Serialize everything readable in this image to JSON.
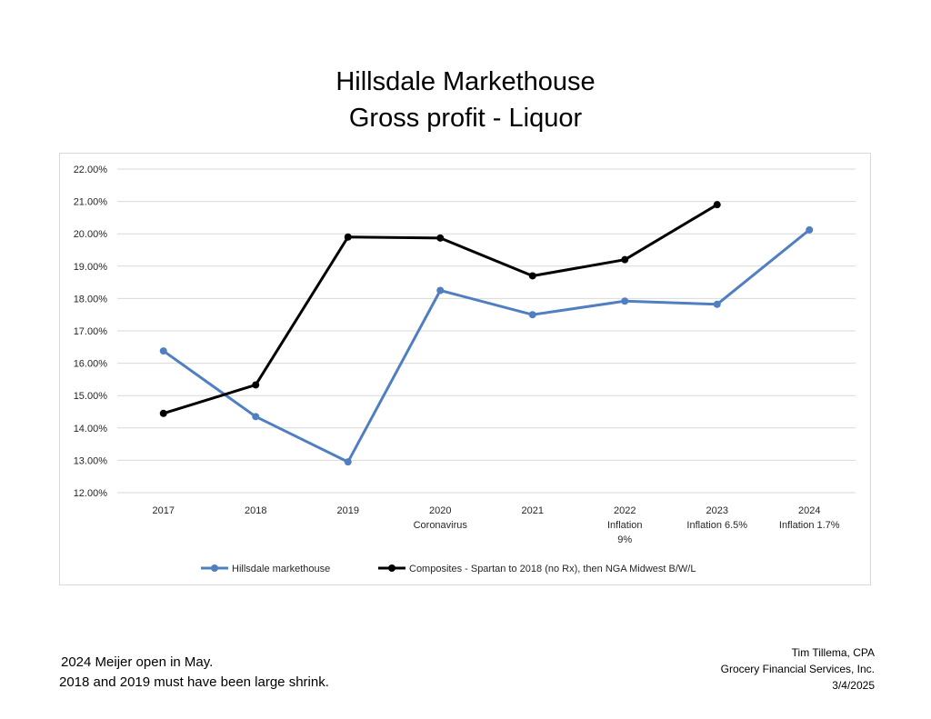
{
  "title": {
    "line1": "Hillsdale Markethouse",
    "line2": "Gross profit - Liquor"
  },
  "chart_data": {
    "type": "line",
    "categories": [
      [
        "2017"
      ],
      [
        "2018"
      ],
      [
        "2019"
      ],
      [
        "2020",
        "Coronavirus"
      ],
      [
        "2021"
      ],
      [
        "2022",
        "Inflation",
        "9%"
      ],
      [
        "2023",
        "Inflation 6.5%"
      ],
      [
        "2024",
        "Inflation 1.7%"
      ]
    ],
    "y_ticks": [
      "12.00%",
      "13.00%",
      "14.00%",
      "15.00%",
      "16.00%",
      "17.00%",
      "18.00%",
      "19.00%",
      "20.00%",
      "21.00%",
      "22.00%"
    ],
    "ylim": [
      12,
      22
    ],
    "grid": true,
    "legend_position": "bottom",
    "series": [
      {
        "name": "Hillsdale markethouse",
        "color": "#4f7fc1",
        "values": [
          16.38,
          14.35,
          12.95,
          18.25,
          17.5,
          17.92,
          17.82,
          20.12
        ]
      },
      {
        "name": "Composites - Spartan to 2018 (no Rx), then NGA Midwest B/W/L",
        "color": "#000000",
        "values": [
          14.45,
          15.33,
          19.9,
          19.87,
          18.7,
          19.2,
          20.9,
          null
        ]
      }
    ]
  },
  "notes": {
    "line1": "2024 Meijer open in May.",
    "line2": "2018 and 2019 must have been large shrink."
  },
  "credit": {
    "name": "Tim Tillema, CPA",
    "company": "Grocery Financial Services, Inc.",
    "date": "3/4/2025"
  }
}
